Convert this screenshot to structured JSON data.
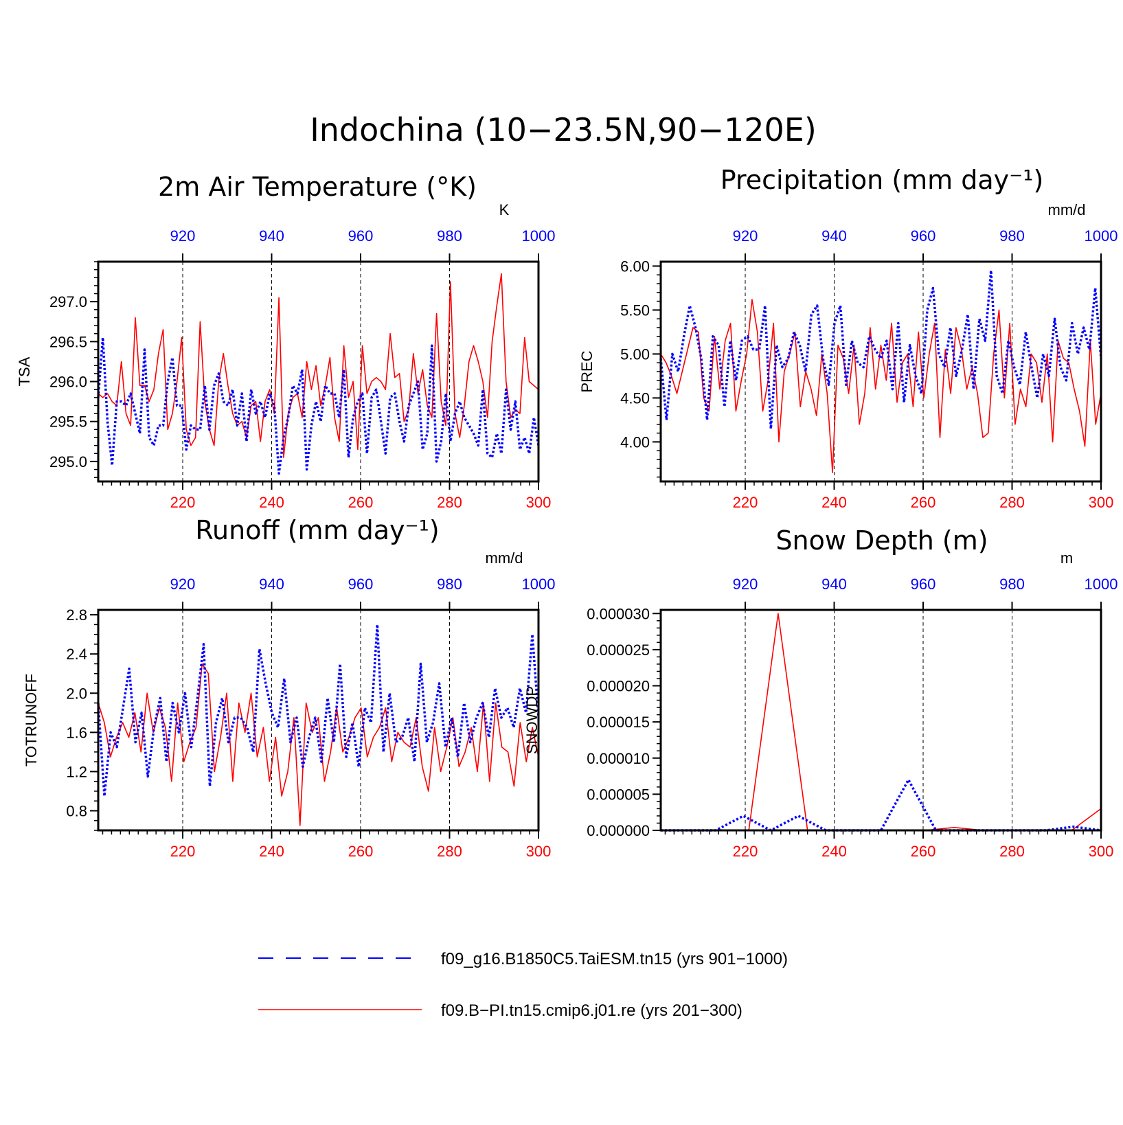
{
  "figure": {
    "title": "Indochina (10−23.5N,90−120E)",
    "colors": {
      "series_a": "#0000ff",
      "series_b": "#ff0000",
      "axis": "#000000"
    }
  },
  "legend": {
    "entries": [
      {
        "label": "f09_g16.B1850C5.TaiESM.tn15 (yrs 901−1000)",
        "color": "#0000ff",
        "style": "dashed"
      },
      {
        "label": "f09.B−PI.tn15.cmip6.j01.re (yrs 201−300)",
        "color": "#ff0000",
        "style": "solid"
      }
    ]
  },
  "chart_data": [
    {
      "type": "line",
      "title": "2m Air Temperature (°K)",
      "ylabel": "TSA",
      "units": "K",
      "ylim": [
        294.75,
        297.5
      ],
      "yticks": [
        295.0,
        295.5,
        296.0,
        296.5,
        297.0
      ],
      "ytick_labels": [
        "295.0",
        "295.5",
        "296.0",
        "296.5",
        "297.0"
      ],
      "yminor": 0.1,
      "bottom_axis": {
        "range": [
          201,
          300
        ],
        "ticks": [
          220,
          240,
          260,
          280,
          300
        ],
        "color": "#ff0000"
      },
      "top_axis": {
        "range": [
          901,
          1000
        ],
        "ticks": [
          920,
          940,
          960,
          980,
          1000
        ],
        "color": "#0000ff"
      },
      "grid": "dashed vertical lines at major ticks",
      "series": [
        {
          "axis": "bottom",
          "color": "#ff0000",
          "style": "solid",
          "values": [
            295.85,
            295.8,
            295.85,
            295.75,
            295.7,
            296.25,
            295.6,
            295.45,
            296.8,
            295.95,
            295.95,
            295.75,
            295.9,
            296.35,
            296.65,
            295.4,
            295.6,
            296.0,
            296.55,
            295.4,
            295.2,
            295.3,
            296.75,
            295.75,
            295.4,
            295.2,
            296.0,
            296.35,
            295.95,
            295.6,
            295.45,
            295.5,
            295.3,
            295.7,
            295.75,
            295.25,
            295.75,
            295.9,
            295.6,
            297.05,
            295.05,
            295.6,
            295.8,
            295.85,
            295.55,
            296.25,
            295.9,
            296.2,
            295.7,
            295.95,
            296.3,
            295.55,
            295.25,
            296.45,
            295.8,
            296.0,
            295.15,
            296.45,
            295.85,
            296.0,
            296.05,
            296.0,
            295.9,
            296.6,
            296.05,
            296.1,
            295.5,
            295.65,
            296.35,
            295.85,
            296.15,
            295.7,
            295.55,
            296.85,
            295.75,
            295.45,
            297.25,
            295.6,
            295.3,
            295.7,
            296.25,
            296.45,
            296.25,
            296.0,
            295.55,
            296.5,
            296.95,
            297.35,
            296.0,
            295.55,
            295.65,
            295.6,
            296.55,
            296.0,
            295.95,
            295.9
          ],
          "note": ""
        },
        {
          "axis": "top",
          "color": "#0000ff",
          "style": "dashed",
          "values": [
            295.8,
            296.55,
            295.5,
            294.95,
            295.75,
            295.75,
            295.7,
            295.85,
            295.6,
            295.35,
            296.4,
            295.3,
            295.2,
            295.45,
            295.45,
            296.0,
            296.3,
            295.7,
            295.7,
            295.15,
            295.45,
            295.4,
            295.4,
            295.95,
            295.4,
            295.95,
            296.1,
            295.75,
            295.7,
            295.9,
            295.45,
            295.85,
            295.25,
            295.9,
            295.6,
            295.75,
            295.55,
            295.85,
            295.7,
            294.85,
            295.3,
            295.55,
            295.95,
            295.85,
            296.15,
            294.9,
            295.45,
            295.75,
            295.5,
            295.95,
            295.85,
            295.85,
            295.55,
            296.15,
            295.05,
            295.55,
            295.75,
            295.85,
            295.1,
            295.8,
            295.9,
            295.5,
            295.1,
            295.8,
            295.85,
            295.5,
            295.25,
            295.7,
            295.85,
            296.0,
            295.15,
            295.35,
            296.45,
            295.0,
            295.25,
            295.85,
            295.25,
            295.6,
            295.75,
            295.55,
            295.45,
            295.35,
            295.2,
            295.9,
            295.1,
            295.05,
            295.35,
            295.1,
            295.9,
            295.4,
            295.75,
            295.15,
            295.3,
            295.1,
            295.55,
            295.2
          ],
          "note": ""
        }
      ]
    },
    {
      "type": "line",
      "title": "Precipitation (mm day⁻¹)",
      "ylabel": "PREC",
      "units": "mm/d",
      "ylim": [
        3.55,
        6.05
      ],
      "yticks": [
        4.0,
        4.5,
        5.0,
        5.5,
        6.0
      ],
      "ytick_labels": [
        "4.00",
        "4.50",
        "5.00",
        "5.50",
        "6.00"
      ],
      "yminor": 0.1,
      "bottom_axis": {
        "range": [
          201,
          300
        ],
        "ticks": [
          220,
          240,
          260,
          280,
          300
        ],
        "color": "#ff0000"
      },
      "top_axis": {
        "range": [
          901,
          1000
        ],
        "ticks": [
          920,
          940,
          960,
          980,
          1000
        ],
        "color": "#0000ff"
      },
      "grid": "dashed vertical lines at major ticks",
      "series": [
        {
          "axis": "bottom",
          "color": "#ff0000",
          "style": "solid",
          "values": [
            5.0,
            4.9,
            4.75,
            4.55,
            4.8,
            5.05,
            5.3,
            5.25,
            4.5,
            4.35,
            5.2,
            4.6,
            5.15,
            5.35,
            4.35,
            4.7,
            5.0,
            5.62,
            5.25,
            4.35,
            4.7,
            5.35,
            4.0,
            4.8,
            5.0,
            5.25,
            4.4,
            4.8,
            4.6,
            4.3,
            5.0,
            4.55,
            3.65,
            5.1,
            4.95,
            4.55,
            5.1,
            4.2,
            4.55,
            5.3,
            4.6,
            5.1,
            4.7,
            5.35,
            4.45,
            4.9,
            5.0,
            4.4,
            5.25,
            4.5,
            5.0,
            5.35,
            4.05,
            5.05,
            4.55,
            5.3,
            5.05,
            4.6,
            4.85,
            4.55,
            4.05,
            4.1,
            5.0,
            5.5,
            4.5,
            5.35,
            4.2,
            4.6,
            4.4,
            5.0,
            4.9,
            4.45,
            5.0,
            4.0,
            5.15,
            4.95,
            4.9,
            4.6,
            4.35,
            3.95,
            5.15,
            4.2,
            4.55
          ],
          "note": ""
        },
        {
          "axis": "top",
          "color": "#0000ff",
          "style": "dashed",
          "values": [
            4.95,
            4.25,
            5.0,
            4.8,
            5.2,
            5.55,
            5.3,
            4.95,
            4.25,
            5.2,
            5.1,
            4.4,
            5.15,
            4.7,
            5.15,
            5.2,
            5.05,
            5.05,
            5.55,
            4.15,
            5.1,
            4.85,
            4.95,
            5.25,
            5.1,
            4.8,
            5.45,
            5.55,
            4.95,
            4.65,
            5.35,
            5.55,
            4.65,
            5.15,
            4.9,
            4.85,
            5.2,
            5.05,
            4.95,
            5.15,
            4.6,
            5.35,
            4.45,
            5.1,
            4.75,
            4.55,
            5.5,
            5.75,
            5.0,
            4.85,
            5.3,
            4.75,
            5.05,
            5.45,
            4.6,
            5.4,
            5.15,
            5.95,
            4.75,
            4.55,
            5.15,
            4.85,
            4.65,
            5.25,
            4.85,
            4.5,
            5.0,
            4.75,
            5.4,
            4.85,
            4.7,
            5.35,
            5.0,
            5.3,
            5.05,
            5.75,
            4.95
          ],
          "note": ""
        }
      ]
    },
    {
      "type": "line",
      "title": "Runoff (mm day⁻¹)",
      "ylabel": "TOTRUNOFF",
      "units": "mm/d",
      "ylim": [
        0.6,
        2.85
      ],
      "yticks": [
        0.8,
        1.2,
        1.6,
        2.0,
        2.4,
        2.8
      ],
      "ytick_labels": [
        "0.8",
        "1.2",
        "1.6",
        "2.0",
        "2.4",
        "2.8"
      ],
      "yminor": 0.1,
      "bottom_axis": {
        "range": [
          201,
          300
        ],
        "ticks": [
          220,
          240,
          260,
          280,
          300
        ],
        "color": "#ff0000"
      },
      "top_axis": {
        "range": [
          901,
          1000
        ],
        "ticks": [
          920,
          940,
          960,
          980,
          1000
        ],
        "color": "#0000ff"
      },
      "grid": "dashed vertical lines at major ticks",
      "series": [
        {
          "axis": "bottom",
          "color": "#ff0000",
          "style": "solid",
          "values": [
            1.9,
            1.7,
            1.35,
            1.55,
            1.7,
            1.55,
            1.8,
            1.4,
            2.0,
            1.6,
            1.85,
            1.65,
            1.1,
            1.9,
            1.3,
            1.5,
            1.65,
            2.3,
            2.2,
            1.2,
            1.55,
            2.0,
            1.1,
            1.9,
            1.6,
            2.0,
            1.35,
            1.65,
            1.1,
            1.55,
            0.95,
            1.2,
            1.75,
            0.65,
            1.9,
            1.6,
            1.75,
            1.1,
            1.4,
            1.85,
            1.4,
            1.55,
            1.75,
            1.85,
            1.35,
            1.55,
            1.65,
            1.85,
            1.3,
            1.6,
            1.5,
            1.45,
            1.75,
            1.25,
            1.0,
            1.65,
            1.2,
            1.45,
            1.75,
            1.25,
            1.4,
            1.65,
            1.2,
            1.9,
            1.1,
            1.9,
            1.45,
            1.4,
            1.05,
            1.7,
            1.3,
            1.65,
            1.35
          ],
          "note": ""
        },
        {
          "axis": "top",
          "color": "#0000ff",
          "style": "dashed",
          "values": [
            1.9,
            0.95,
            1.6,
            1.45,
            1.85,
            2.25,
            1.5,
            1.8,
            1.15,
            1.65,
            1.95,
            1.3,
            1.9,
            1.6,
            2.0,
            1.45,
            1.95,
            2.5,
            1.05,
            1.7,
            1.95,
            1.5,
            1.75,
            1.75,
            1.65,
            1.4,
            2.45,
            2.1,
            1.8,
            1.65,
            2.15,
            1.5,
            1.75,
            1.25,
            1.55,
            1.75,
            1.3,
            1.95,
            1.5,
            2.3,
            1.35,
            1.7,
            1.25,
            1.85,
            1.7,
            2.7,
            1.4,
            2.0,
            1.5,
            1.55,
            1.75,
            1.3,
            2.3,
            1.5,
            1.7,
            2.1,
            1.45,
            1.75,
            1.35,
            1.9,
            1.5,
            1.75,
            1.9,
            1.55,
            2.05,
            1.75,
            1.85,
            1.65,
            2.05,
            1.8,
            2.6,
            1.75
          ],
          "note": ""
        }
      ]
    },
    {
      "type": "line",
      "title": "Snow Depth (m)",
      "ylabel": "SNOWDP",
      "units": "m",
      "ylim": [
        0.0,
        3.05e-05
      ],
      "yticks": [
        0.0,
        5e-06,
        1e-05,
        1.5e-05,
        2e-05,
        2.5e-05,
        3e-05
      ],
      "ytick_labels": [
        "0.000000",
        "0.000005",
        "0.000010",
        "0.000015",
        "0.000020",
        "0.000025",
        "0.000030"
      ],
      "yminor": 1e-06,
      "bottom_axis": {
        "range": [
          201,
          300
        ],
        "ticks": [
          220,
          240,
          260,
          280,
          300
        ],
        "color": "#ff0000"
      },
      "top_axis": {
        "range": [
          901,
          1000
        ],
        "ticks": [
          920,
          940,
          960,
          980,
          1000
        ],
        "color": "#0000ff"
      },
      "grid": "dashed vertical lines at major ticks",
      "series": [
        {
          "axis": "bottom",
          "color": "#ff0000",
          "style": "solid",
          "values": [
            0,
            0,
            0,
            0,
            3e-05,
            0,
            0,
            0,
            0,
            0,
            4e-07,
            0,
            0,
            0,
            0,
            3e-06
          ],
          "note": ""
        },
        {
          "axis": "top",
          "color": "#0000ff",
          "style": "dashed",
          "values": [
            0,
            0,
            0,
            2e-06,
            0,
            2e-06,
            0,
            0,
            0,
            7e-06,
            0,
            0,
            0,
            0,
            0,
            5e-07,
            0
          ],
          "note": ""
        }
      ]
    }
  ]
}
